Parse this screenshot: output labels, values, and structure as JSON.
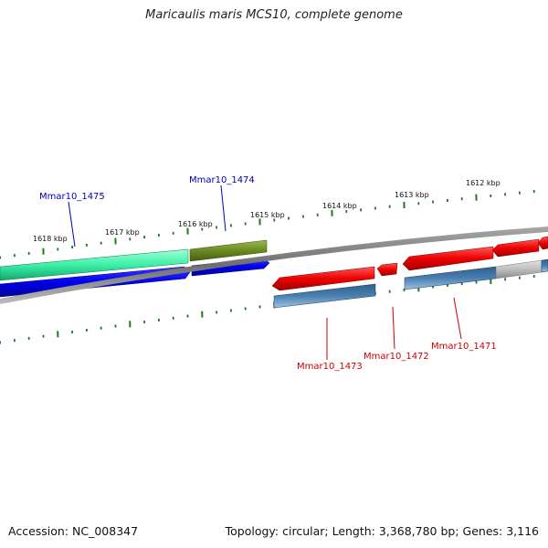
{
  "title": "Maricaulis maris MCS10, complete genome",
  "footer": {
    "accession": "Accession: NC_008347",
    "summary": "Topology: circular; Length: 3,368,780 bp; Genes: 3,116"
  },
  "ticks": {
    "labels": [
      "1618 kbp",
      "1617 kbp",
      "1616 kbp",
      "1615 kbp",
      "1614 kbp",
      "1613 kbp",
      "1612 kbp"
    ]
  },
  "gene_labels": {
    "top": [
      "Mmar10_1475",
      "Mmar10_1474"
    ],
    "bottom": [
      "Mmar10_1473",
      "Mmar10_1472",
      "Mmar10_1471"
    ]
  },
  "colors": {
    "tick": "#1e7a1e",
    "backbone": "#808080",
    "label_top": "#0000b4",
    "label_bottom": "#cc0000",
    "cds_forward_green": "#3df0a8",
    "cds_forward_olive": "#6b8a22",
    "cds_blue": "#0000ee",
    "cds_red": "#ee0000",
    "cds_steel": "#4a7fb0",
    "cds_grey": "#bdbdbd"
  }
}
